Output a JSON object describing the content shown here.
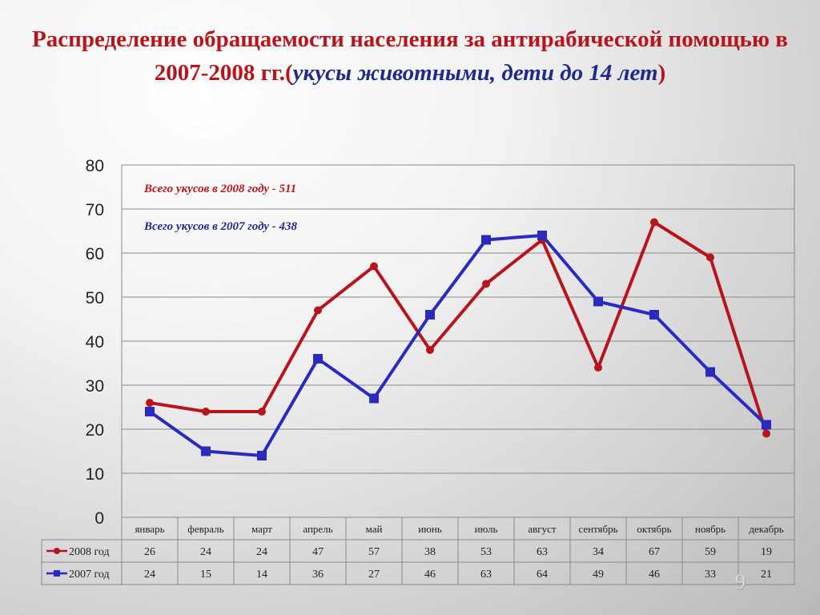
{
  "title": {
    "main": "Распределение обращаемости населения за антирабической помощью в 2007-2008 гг.(",
    "sub": "укусы животными, дети до 14 лет",
    "close": ")"
  },
  "annotations": {
    "total_2008": "Всего укусов в 2008 году - 511",
    "total_2007": "Всего укусов в 2007 году - 438"
  },
  "page_number": "9",
  "colors": {
    "series_2008": "#b8141c",
    "series_2007": "#2a2ac0"
  },
  "chart_data": {
    "type": "line",
    "categories": [
      "январь",
      "февраль",
      "март",
      "апрель",
      "май",
      "июнь",
      "июль",
      "август",
      "сентябрь",
      "октябрь",
      "ноябрь",
      "декабрь"
    ],
    "series": [
      {
        "name": "2008 год",
        "marker": "circle",
        "color": "#b8141c",
        "values": [
          26,
          24,
          24,
          47,
          57,
          38,
          53,
          63,
          34,
          67,
          59,
          19
        ]
      },
      {
        "name": "2007 год",
        "marker": "square",
        "color": "#2a2ac0",
        "values": [
          24,
          15,
          14,
          36,
          27,
          46,
          63,
          64,
          49,
          46,
          33,
          21
        ]
      }
    ],
    "yticks": [
      0,
      10,
      20,
      30,
      40,
      50,
      60,
      70,
      80
    ],
    "ylim": [
      0,
      80
    ],
    "grid": true,
    "legend": "data-table"
  }
}
